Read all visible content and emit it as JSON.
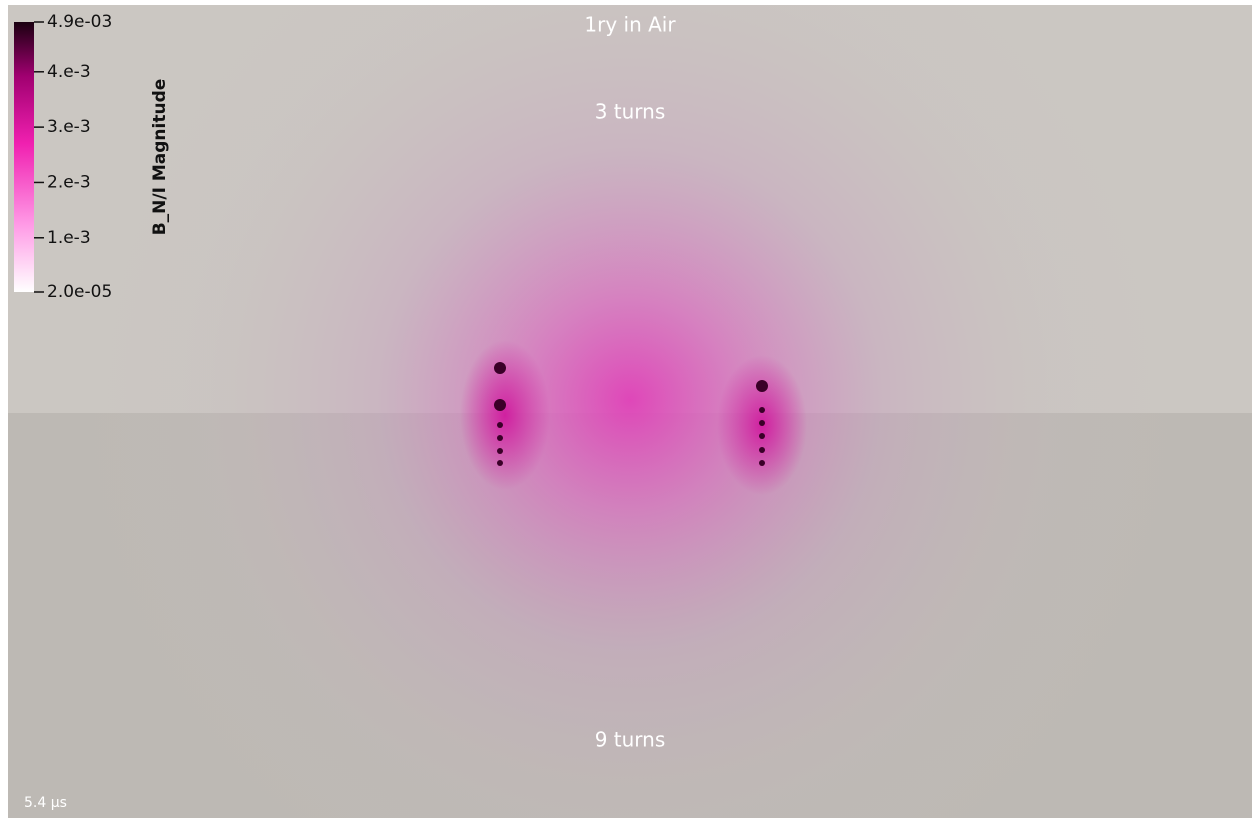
{
  "view": {
    "title": "1ry in Air",
    "top_label": "3 turns",
    "bottom_label": "9 turns",
    "time": "5.4 µs"
  },
  "colorbar": {
    "title": "B_N/I  Magnitude",
    "range": [
      2e-05,
      0.0049
    ],
    "ticks": [
      {
        "value": 0.0049,
        "label": "4.9e-03"
      },
      {
        "value": 0.004,
        "label": "4.e-3"
      },
      {
        "value": 0.003,
        "label": "3.e-3"
      },
      {
        "value": 0.002,
        "label": "2.e-3"
      },
      {
        "value": 0.001,
        "label": "1.e-3"
      },
      {
        "value": 2e-05,
        "label": "2.0e-05"
      }
    ]
  }
}
